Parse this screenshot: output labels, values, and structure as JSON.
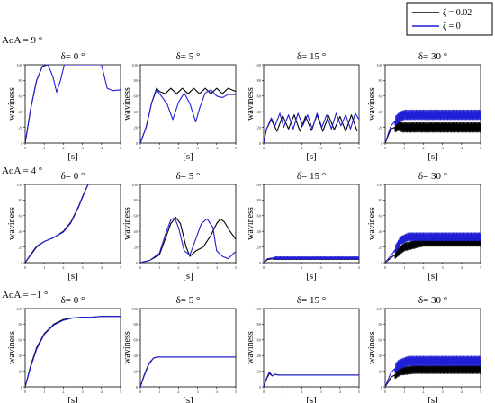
{
  "legend": {
    "entries": [
      {
        "label": "ζ = 0.02",
        "color": "#000000"
      },
      {
        "label": "ζ = 0",
        "color": "#1f1fd6"
      }
    ],
    "placement": "top-right"
  },
  "rows": [
    {
      "label": "AoA =  9 °"
    },
    {
      "label": "AoA =  4 °"
    },
    {
      "label": "AoA = −1 °"
    }
  ],
  "chart_data": [
    {
      "type": "line",
      "row": 0,
      "col": 0,
      "title": "δ= 0 °",
      "xlabel": "[s]",
      "ylabel": "waviness",
      "xlim": [
        0,
        5
      ],
      "ylim": [
        0,
        100
      ],
      "xticks": [
        0,
        1,
        2,
        3,
        4,
        5
      ],
      "yticks": [
        0,
        20,
        40,
        60,
        80,
        100
      ],
      "series": [
        {
          "color": "#000000",
          "x": [
            0,
            0.3,
            0.6,
            0.9,
            1.1
          ],
          "y": [
            0,
            45,
            80,
            98,
            100
          ]
        },
        {
          "color": "#1f1fd6",
          "x": [
            0,
            0.3,
            0.6,
            0.9,
            1.2,
            1.45,
            1.65,
            1.85,
            2.05,
            2.3,
            4.0,
            4.3,
            4.6,
            5.0
          ],
          "y": [
            0,
            45,
            80,
            98,
            100,
            85,
            65,
            80,
            100,
            100,
            100,
            70,
            67,
            68
          ]
        }
      ]
    },
    {
      "type": "line",
      "row": 0,
      "col": 1,
      "title": "δ= 5 °",
      "xlabel": "[s]",
      "ylabel": "waviness",
      "xlim": [
        0,
        5
      ],
      "ylim": [
        0,
        100
      ],
      "xticks": [
        0,
        1,
        2,
        3,
        4,
        5
      ],
      "yticks": [
        0,
        20,
        40,
        60,
        80,
        100
      ],
      "series": [
        {
          "color": "#000000",
          "x": [
            0,
            0.3,
            0.6,
            0.85,
            1.0,
            1.3,
            1.6,
            1.9,
            2.2,
            2.5,
            2.8,
            3.1,
            3.4,
            3.7,
            4.0,
            4.3,
            4.6,
            5.0
          ],
          "y": [
            0,
            20,
            52,
            70,
            66,
            63,
            70,
            63,
            70,
            63,
            70,
            63,
            70,
            63,
            70,
            63,
            70,
            66
          ]
        },
        {
          "color": "#1f1fd6",
          "x": [
            0,
            0.3,
            0.6,
            0.85,
            1.1,
            1.4,
            1.7,
            2.0,
            2.3,
            2.6,
            2.9,
            3.1,
            3.4,
            3.7,
            4.0,
            4.3,
            4.6,
            5.0
          ],
          "y": [
            0,
            20,
            52,
            68,
            60,
            50,
            30,
            52,
            64,
            50,
            27,
            44,
            64,
            68,
            60,
            58,
            62,
            62
          ]
        }
      ]
    },
    {
      "type": "line",
      "row": 0,
      "col": 2,
      "title": "δ= 15 °",
      "xlabel": "[s]",
      "ylabel": "waviness",
      "xlim": [
        0,
        5
      ],
      "ylim": [
        0,
        100
      ],
      "xticks": [
        0,
        1,
        2,
        3,
        4,
        5
      ],
      "yticks": [
        0,
        20,
        40,
        60,
        80,
        100
      ],
      "series": [
        {
          "color": "#000000",
          "x": [
            0,
            0.15,
            0.4,
            0.7,
            1.0,
            1.3,
            1.6,
            1.9,
            2.2,
            2.5,
            2.8,
            3.1,
            3.4,
            3.7,
            4.0,
            4.3,
            4.6,
            4.9
          ],
          "y": [
            0,
            18,
            30,
            15,
            35,
            18,
            36,
            15,
            34,
            16,
            36,
            15,
            35,
            17,
            34,
            15,
            36,
            15
          ]
        },
        {
          "color": "#1f1fd6",
          "x": [
            0,
            0.15,
            0.4,
            0.6,
            0.85,
            1.05,
            1.3,
            1.55,
            1.8,
            2.05,
            2.3,
            2.55,
            2.8,
            3.05,
            3.3,
            3.55,
            3.8,
            4.05,
            4.3,
            4.55,
            4.8,
            5.0
          ],
          "y": [
            0,
            18,
            32,
            22,
            38,
            20,
            36,
            18,
            38,
            22,
            36,
            18,
            38,
            20,
            36,
            18,
            38,
            22,
            36,
            18,
            38,
            30
          ]
        }
      ]
    },
    {
      "type": "line",
      "row": 0,
      "col": 3,
      "title": "δ= 30 °",
      "xlabel": "[s]",
      "ylabel": "waviness",
      "xlim": [
        0,
        5
      ],
      "ylim": [
        0,
        100
      ],
      "xticks": [
        0,
        1,
        2,
        3,
        4,
        5
      ],
      "yticks": [
        0,
        20,
        40,
        60,
        80,
        100
      ],
      "series": [
        {
          "color": "#000000",
          "band": true,
          "x": [
            0,
            0.3,
            0.7,
            0.9,
            1.0,
            5.0
          ],
          "y": [
            0,
            18,
            22,
            20,
            20,
            20
          ],
          "amp": 12
        },
        {
          "color": "#1f1fd6",
          "band": true,
          "x": [
            0,
            0.3,
            0.6,
            0.8,
            1.0,
            5.0
          ],
          "y": [
            0,
            22,
            30,
            34,
            36,
            36
          ],
          "amp": 12
        }
      ]
    },
    {
      "type": "line",
      "row": 1,
      "col": 0,
      "title": "δ= 0 °",
      "xlabel": "[s]",
      "ylabel": "waviness",
      "xlim": [
        0,
        5
      ],
      "ylim": [
        0,
        100
      ],
      "xticks": [
        0,
        1,
        2,
        3,
        4,
        5
      ],
      "yticks": [
        0,
        20,
        40,
        60,
        80,
        100
      ],
      "series": [
        {
          "color": "#000000",
          "x": [
            0,
            0.3,
            0.6,
            1.0,
            1.5,
            2.0,
            2.4,
            2.8,
            3.1,
            3.3
          ],
          "y": [
            0,
            10,
            20,
            27,
            32,
            40,
            52,
            72,
            90,
            100
          ]
        },
        {
          "color": "#1f1fd6",
          "x": [
            0,
            0.3,
            0.6,
            1.0,
            1.5,
            2.0,
            2.4,
            2.8,
            3.1,
            3.3
          ],
          "y": [
            0,
            11,
            21,
            27,
            32,
            39,
            51,
            71,
            89,
            100
          ]
        }
      ]
    },
    {
      "type": "line",
      "row": 1,
      "col": 1,
      "title": "δ= 5 °",
      "xlabel": "[s]",
      "ylabel": "waviness",
      "xlim": [
        0,
        5
      ],
      "ylim": [
        0,
        100
      ],
      "xticks": [
        0,
        1,
        2,
        3,
        4,
        5
      ],
      "yticks": [
        0,
        20,
        40,
        60,
        80,
        100
      ],
      "series": [
        {
          "color": "#000000",
          "x": [
            0,
            0.5,
            1.0,
            1.3,
            1.6,
            1.85,
            2.1,
            2.4,
            2.6,
            2.9,
            3.3,
            3.7,
            4.0,
            4.2,
            4.4,
            4.7,
            5.0
          ],
          "y": [
            0,
            3,
            10,
            30,
            50,
            58,
            50,
            20,
            8,
            15,
            20,
            35,
            50,
            56,
            52,
            40,
            30
          ]
        },
        {
          "color": "#1f1fd6",
          "x": [
            0,
            0.5,
            1.0,
            1.3,
            1.6,
            1.8,
            2.0,
            2.3,
            2.6,
            2.9,
            3.2,
            3.5,
            3.8,
            4.0,
            4.3,
            4.6,
            4.9,
            5.0
          ],
          "y": [
            0,
            3,
            12,
            35,
            55,
            57,
            45,
            15,
            10,
            30,
            50,
            56,
            45,
            15,
            8,
            5,
            12,
            14
          ]
        }
      ]
    },
    {
      "type": "line",
      "row": 1,
      "col": 2,
      "title": "δ= 15 °",
      "xlabel": "[s]",
      "ylabel": "waviness",
      "xlim": [
        0,
        5
      ],
      "ylim": [
        0,
        100
      ],
      "xticks": [
        0,
        1,
        2,
        3,
        4,
        5
      ],
      "yticks": [
        0,
        20,
        40,
        60,
        80,
        100
      ],
      "series": [
        {
          "color": "#000000",
          "band": true,
          "x": [
            0,
            0.2,
            0.5,
            5.0
          ],
          "y": [
            0,
            4,
            5,
            5
          ],
          "amp": 2
        },
        {
          "color": "#1f1fd6",
          "band": true,
          "x": [
            0,
            0.2,
            0.5,
            5.0
          ],
          "y": [
            0,
            5,
            6,
            6
          ],
          "amp": 3
        }
      ]
    },
    {
      "type": "line",
      "row": 1,
      "col": 3,
      "title": "δ= 30 °",
      "xlabel": "[s]",
      "ylabel": "waviness",
      "xlim": [
        0,
        5
      ],
      "ylim": [
        0,
        100
      ],
      "xticks": [
        0,
        1,
        2,
        3,
        4,
        5
      ],
      "yticks": [
        0,
        20,
        40,
        60,
        80,
        100
      ],
      "series": [
        {
          "color": "#000000",
          "band": true,
          "x": [
            0,
            0.4,
            1.0,
            2.0,
            5.0
          ],
          "y": [
            0,
            8,
            20,
            26,
            26
          ],
          "amp": 10
        },
        {
          "color": "#1f1fd6",
          "band": true,
          "x": [
            0,
            0.4,
            0.8,
            1.2,
            5.0
          ],
          "y": [
            0,
            12,
            28,
            33,
            33
          ],
          "amp": 10
        }
      ]
    },
    {
      "type": "line",
      "row": 2,
      "col": 0,
      "title": "δ= 0 °",
      "xlabel": "[s]",
      "ylabel": "waviness",
      "xlim": [
        0,
        5
      ],
      "ylim": [
        0,
        100
      ],
      "xticks": [
        0,
        1,
        2,
        3,
        4,
        5
      ],
      "yticks": [
        0,
        20,
        40,
        60,
        80,
        100
      ],
      "series": [
        {
          "color": "#000000",
          "x": [
            0,
            0.3,
            0.6,
            1.0,
            1.5,
            2.0,
            2.5,
            3.0,
            3.5,
            4.0,
            5.0
          ],
          "y": [
            0,
            28,
            50,
            68,
            80,
            86,
            88,
            89,
            89,
            90,
            90
          ]
        },
        {
          "color": "#1f1fd6",
          "x": [
            0,
            0.3,
            0.6,
            1.0,
            1.5,
            2.0,
            2.5,
            3.0,
            3.5,
            4.0,
            5.0
          ],
          "y": [
            0,
            26,
            48,
            67,
            79,
            85,
            88,
            89,
            89,
            90,
            90
          ]
        }
      ]
    },
    {
      "type": "line",
      "row": 2,
      "col": 1,
      "title": "δ= 5 °",
      "xlabel": "[s]",
      "ylabel": "waviness",
      "xlim": [
        0,
        5
      ],
      "ylim": [
        0,
        100
      ],
      "xticks": [
        0,
        1,
        2,
        3,
        4,
        5
      ],
      "yticks": [
        0,
        20,
        40,
        60,
        80,
        100
      ],
      "series": [
        {
          "color": "#000000",
          "x": [
            0,
            0.2,
            0.45,
            0.7,
            0.9,
            1.2,
            5.0
          ],
          "y": [
            0,
            15,
            30,
            37,
            38,
            38,
            38
          ]
        },
        {
          "color": "#1f1fd6",
          "x": [
            0,
            0.2,
            0.45,
            0.7,
            0.9,
            1.2,
            5.0
          ],
          "y": [
            0,
            14,
            29,
            37,
            38,
            38,
            38
          ]
        }
      ]
    },
    {
      "type": "line",
      "row": 2,
      "col": 2,
      "title": "δ= 15 °",
      "xlabel": "[s]",
      "ylabel": "waviness",
      "xlim": [
        0,
        5
      ],
      "ylim": [
        0,
        100
      ],
      "xticks": [
        0,
        1,
        2,
        3,
        4,
        5
      ],
      "yticks": [
        0,
        20,
        40,
        60,
        80,
        100
      ],
      "series": [
        {
          "color": "#000000",
          "x": [
            0,
            0.15,
            0.3,
            0.45,
            0.6,
            0.8,
            1.0,
            5.0
          ],
          "y": [
            0,
            10,
            17,
            14,
            16,
            15,
            15,
            15
          ]
        },
        {
          "color": "#1f1fd6",
          "x": [
            0,
            0.15,
            0.3,
            0.45,
            0.6,
            0.8,
            1.0,
            5.0
          ],
          "y": [
            0,
            11,
            19,
            14,
            16,
            15,
            15,
            15
          ]
        }
      ]
    },
    {
      "type": "line",
      "row": 2,
      "col": 3,
      "title": "δ= 30 °",
      "xlabel": "[s]",
      "ylabel": "waviness",
      "xlim": [
        0,
        5
      ],
      "ylim": [
        0,
        100
      ],
      "xticks": [
        0,
        1,
        2,
        3,
        4,
        5
      ],
      "yticks": [
        0,
        20,
        40,
        60,
        80,
        100
      ],
      "series": [
        {
          "color": "#000000",
          "band": true,
          "x": [
            0,
            0.3,
            0.8,
            1.5,
            5.0
          ],
          "y": [
            0,
            12,
            20,
            22,
            22
          ],
          "amp": 10
        },
        {
          "color": "#1f1fd6",
          "band": true,
          "x": [
            0,
            0.3,
            0.7,
            1.2,
            5.0
          ],
          "y": [
            0,
            18,
            28,
            33,
            33
          ],
          "amp": 12
        }
      ]
    }
  ]
}
